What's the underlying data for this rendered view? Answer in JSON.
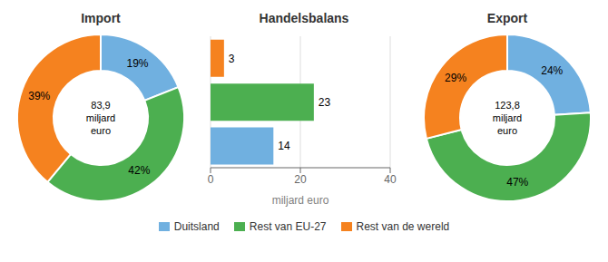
{
  "chart_data": [
    {
      "type": "donut",
      "title": "Import",
      "categories": [
        "Duitsland",
        "Rest van EU-27",
        "Rest van de wereld"
      ],
      "values": [
        19,
        42,
        39
      ],
      "value_labels": [
        "19%",
        "42%",
        "39%"
      ],
      "colors": [
        "#70b0e0",
        "#4caf50",
        "#f5821f"
      ],
      "annotation": "83,9\nmiljard\neuro",
      "data_labels": true,
      "legend": "bottom"
    },
    {
      "type": "bar",
      "title": "Handelsbalans",
      "orientation": "horizontal",
      "categories": [
        null,
        null,
        null
      ],
      "values": [
        3,
        23,
        14
      ],
      "colors": [
        "#f5821f",
        "#4caf50",
        "#70b0e0"
      ],
      "xlabel": "miljard euro",
      "xlim": [
        0,
        40
      ],
      "xticks": [
        0,
        20,
        40
      ],
      "grid": true,
      "data_labels": true,
      "tick_labels": "x"
    },
    {
      "type": "donut",
      "title": "Export",
      "categories": [
        "Duitsland",
        "Rest van EU-27",
        "Rest van de wereld"
      ],
      "values": [
        24,
        47,
        29
      ],
      "value_labels": [
        "24%",
        "47%",
        "29%"
      ],
      "colors": [
        "#70b0e0",
        "#4caf50",
        "#f5821f"
      ],
      "annotation": "123,8\nmiljard\neuro",
      "data_labels": true
    }
  ]
}
